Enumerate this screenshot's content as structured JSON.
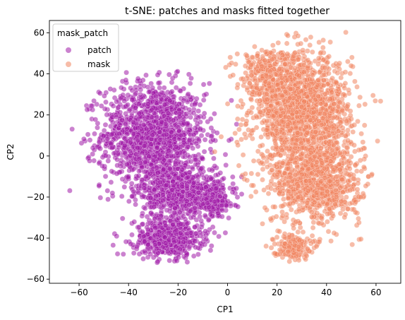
{
  "chart_data": {
    "type": "scatter",
    "title": "t-SNE: patches and masks fitted together",
    "xlabel": "CP1",
    "ylabel": "CP2",
    "xlim": [
      -72,
      70
    ],
    "ylim": [
      -62,
      66
    ],
    "xticks": [
      -60,
      -40,
      -20,
      0,
      20,
      40,
      60
    ],
    "yticks": [
      -60,
      -40,
      -20,
      0,
      20,
      40,
      60
    ],
    "xtick_labels": [
      "−60",
      "−40",
      "−20",
      "0",
      "20",
      "40",
      "60"
    ],
    "ytick_labels": [
      "−60",
      "−40",
      "−20",
      "0",
      "20",
      "40",
      "60"
    ],
    "legend": {
      "title": "mask_patch",
      "position": "upper-left",
      "entries": [
        {
          "label": "patch",
          "color": "#a11ba8"
        },
        {
          "label": "mask",
          "color": "#f08560"
        }
      ]
    },
    "series": [
      {
        "name": "patch",
        "color": "#a11ba8",
        "clusters": [
          {
            "cx": -30,
            "cy": 10,
            "sx": 14,
            "sy": 17,
            "n": 1400
          },
          {
            "cx": -18,
            "cy": -18,
            "sx": 11,
            "sy": 9,
            "n": 650
          },
          {
            "cx": -24,
            "cy": -40,
            "sx": 9,
            "sy": 6,
            "n": 550
          },
          {
            "cx": -5,
            "cy": -22,
            "sx": 5,
            "sy": 5,
            "n": 150
          }
        ],
        "x_range": [
          -66,
          6
        ],
        "y_range": [
          -56,
          42
        ]
      },
      {
        "name": "mask",
        "color": "#f08560",
        "clusters": [
          {
            "cx": 30,
            "cy": 22,
            "sx": 13,
            "sy": 18,
            "n": 1500
          },
          {
            "cx": 36,
            "cy": -12,
            "sx": 12,
            "sy": 14,
            "n": 900
          },
          {
            "cx": 26,
            "cy": -44,
            "sx": 5,
            "sy": 4,
            "n": 180
          },
          {
            "cx": 16,
            "cy": 40,
            "sx": 8,
            "sy": 9,
            "n": 250
          }
        ],
        "x_range": [
          -6,
          66
        ],
        "y_range": [
          -52,
          61
        ]
      }
    ]
  }
}
